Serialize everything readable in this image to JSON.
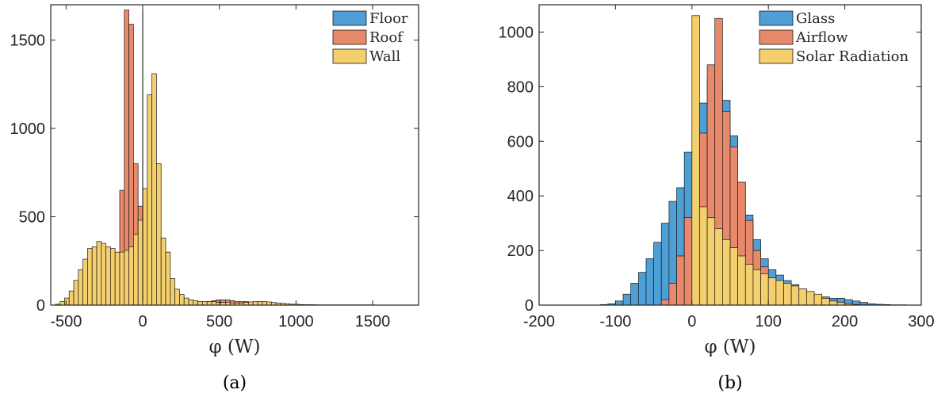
{
  "chart_data": [
    {
      "type": "bar",
      "panel": "a",
      "caption": "(a)",
      "xlabel": "φ (W)",
      "ylabel": "",
      "xlim": [
        -600,
        1800
      ],
      "ylim": [
        0,
        1700
      ],
      "xticks": [
        -500,
        0,
        500,
        1000,
        1500
      ],
      "xtick_labels": [
        "-500",
        "0",
        "500",
        "1000",
        "1500"
      ],
      "yticks": [
        0,
        500,
        1000,
        1500
      ],
      "ytick_labels": [
        "0",
        "500",
        "1000",
        "1500"
      ],
      "legend_position": "top-right",
      "reference_line_x": 0,
      "bin_width": 30,
      "series": [
        {
          "name": "Floor",
          "color": "#4d9fd6",
          "bin_start": -60,
          "values": [
            2,
            3,
            4,
            3,
            2,
            2,
            1,
            1
          ]
        },
        {
          "name": "Roof",
          "color": "#e8896b",
          "bin_start": -570,
          "values": [
            0,
            0,
            0,
            0,
            0,
            0,
            0,
            0,
            0,
            0,
            0,
            0,
            0,
            0,
            650,
            1670,
            1590,
            800,
            560,
            420,
            360,
            250,
            170,
            110,
            80,
            60,
            40,
            20,
            10,
            5,
            5,
            5,
            10,
            20,
            25,
            30,
            30,
            30,
            25,
            20,
            20,
            20,
            15,
            15,
            10,
            10,
            10,
            8,
            5,
            5,
            5,
            5,
            3,
            3,
            2,
            2,
            2,
            1,
            1,
            1,
            1,
            1,
            1,
            1,
            1,
            1,
            1,
            1,
            1,
            1
          ]
        },
        {
          "name": "Wall",
          "color": "#f3cf6d",
          "bin_start": -570,
          "values": [
            5,
            20,
            40,
            80,
            140,
            200,
            260,
            320,
            330,
            360,
            350,
            330,
            320,
            300,
            300,
            310,
            330,
            400,
            480,
            660,
            1190,
            1310,
            800,
            380,
            300,
            150,
            90,
            60,
            40,
            30,
            25,
            20,
            20,
            20,
            20,
            15,
            15,
            15,
            12,
            12,
            12,
            15,
            18,
            20,
            20,
            20,
            18,
            15,
            12,
            10,
            8,
            5,
            5,
            3,
            2,
            2,
            1,
            1,
            1,
            1,
            1,
            1,
            1,
            1,
            1,
            1,
            1,
            1,
            1,
            1
          ]
        }
      ]
    },
    {
      "type": "bar",
      "panel": "b",
      "caption": "(b)",
      "xlabel": "φ (W)",
      "ylabel": "",
      "xlim": [
        -200,
        300
      ],
      "ylim": [
        0,
        1100
      ],
      "xticks": [
        -200,
        -100,
        0,
        100,
        200,
        300
      ],
      "xtick_labels": [
        "-200",
        "-100",
        "0",
        "100",
        "200",
        "300"
      ],
      "yticks": [
        0,
        200,
        400,
        600,
        800,
        1000
      ],
      "ytick_labels": [
        "0",
        "200",
        "400",
        "600",
        "800",
        "1000"
      ],
      "legend_position": "top-right",
      "bin_width": 10,
      "series": [
        {
          "name": "Glass",
          "color": "#4d9fd6",
          "bin_start": -200,
          "values": [
            0,
            0,
            0,
            0,
            0,
            0,
            0,
            0,
            2,
            5,
            15,
            40,
            80,
            120,
            170,
            230,
            300,
            380,
            430,
            560,
            650,
            740,
            830,
            820,
            750,
            620,
            450,
            330,
            240,
            170,
            130,
            110,
            90,
            75,
            60,
            40,
            35,
            30,
            25,
            25,
            20,
            15,
            10,
            5,
            3,
            2,
            1,
            1,
            0,
            0
          ]
        },
        {
          "name": "Airflow",
          "color": "#e8896b",
          "bin_start": -200,
          "values": [
            0,
            0,
            0,
            0,
            0,
            0,
            0,
            0,
            0,
            0,
            0,
            0,
            0,
            0,
            0,
            0,
            20,
            80,
            180,
            320,
            480,
            630,
            880,
            1050,
            710,
            580,
            450,
            310,
            200,
            140,
            90,
            60,
            40,
            30,
            20,
            10,
            5,
            3,
            2,
            1,
            1,
            0,
            0,
            0,
            0,
            0,
            0,
            0,
            0,
            0
          ]
        },
        {
          "name": "Solar Radiation",
          "color": "#f3cf6d",
          "bin_start": -200,
          "values": [
            0,
            0,
            0,
            0,
            0,
            0,
            0,
            0,
            0,
            0,
            0,
            0,
            0,
            0,
            0,
            0,
            0,
            0,
            0,
            0,
            1060,
            360,
            320,
            280,
            240,
            210,
            180,
            150,
            130,
            115,
            100,
            90,
            80,
            70,
            60,
            50,
            40,
            25,
            15,
            10,
            5,
            2,
            1,
            0,
            0,
            0,
            0,
            0,
            0,
            0
          ]
        }
      ]
    }
  ]
}
